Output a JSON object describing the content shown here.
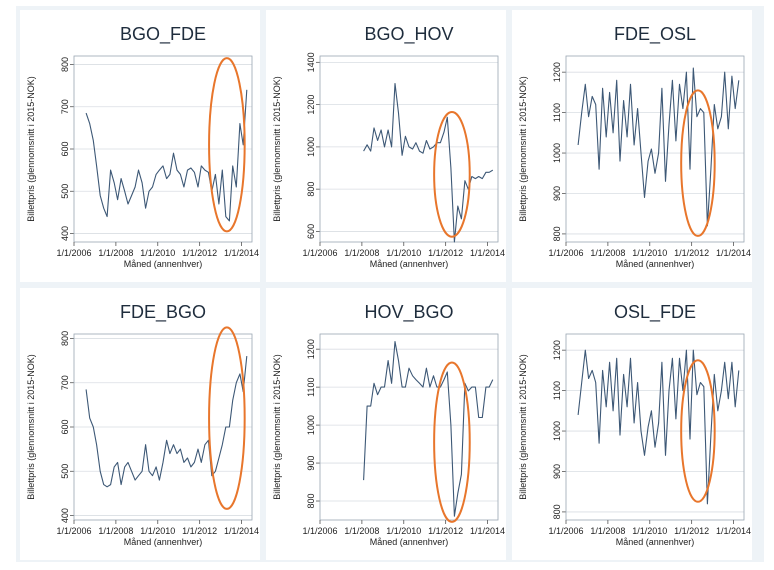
{
  "chart_data": [
    {
      "type": "line",
      "title": "BGO_FDE",
      "xlabel": "Måned (annenhver)",
      "ylabel": "Billettpris (glennomsnitt i 2015-NOK)",
      "xlim": [
        2006.0,
        2014.5
      ],
      "xtick_labels": [
        "1/1/2006",
        "1/1/2008",
        "1/1/2010",
        "1/1/2012",
        "1/1/2014"
      ],
      "ylim": [
        380,
        820
      ],
      "yticks": [
        400,
        500,
        600,
        700,
        800
      ],
      "x": [
        2006.58,
        2006.75,
        2006.92,
        2007.08,
        2007.25,
        2007.42,
        2007.58,
        2007.75,
        2007.92,
        2008.08,
        2008.25,
        2008.42,
        2008.58,
        2008.75,
        2008.92,
        2009.08,
        2009.25,
        2009.42,
        2009.58,
        2009.75,
        2009.92,
        2010.08,
        2010.25,
        2010.42,
        2010.58,
        2010.75,
        2010.92,
        2011.08,
        2011.25,
        2011.42,
        2011.58,
        2011.75,
        2011.92,
        2012.08,
        2012.25,
        2012.42,
        2012.58,
        2012.75,
        2012.92,
        2013.08,
        2013.25,
        2013.42,
        2013.58,
        2013.75,
        2013.92,
        2014.08,
        2014.25
      ],
      "series": [
        {
          "values": [
            685,
            660,
            620,
            560,
            490,
            460,
            440,
            550,
            520,
            480,
            530,
            500,
            470,
            490,
            510,
            550,
            520,
            460,
            500,
            510,
            540,
            550,
            560,
            530,
            540,
            590,
            550,
            540,
            510,
            550,
            555,
            545,
            510,
            560,
            550,
            545,
            500,
            540,
            470,
            550,
            440,
            430,
            560,
            510,
            660,
            610,
            740
          ]
        }
      ],
      "highlight_ellipse": {
        "center": [
          2013.3,
          610
        ],
        "rx": 0.85,
        "ry": 205
      }
    },
    {
      "type": "line",
      "title": "BGO_HOV",
      "xlabel": "Måned (annenhver)",
      "ylabel": "Billettpris (glennomsnitt i 2015-NOK)",
      "xlim": [
        2006.0,
        2014.5
      ],
      "xtick_labels": [
        "1/1/2006",
        "1/1/2008",
        "1/1/2010",
        "1/1/2012",
        "1/1/2014"
      ],
      "ylim": [
        550,
        1430
      ],
      "yticks": [
        600,
        800,
        1000,
        1200,
        1400
      ],
      "x": [
        2008.08,
        2008.25,
        2008.42,
        2008.58,
        2008.75,
        2008.92,
        2009.08,
        2009.25,
        2009.42,
        2009.58,
        2009.75,
        2009.92,
        2010.08,
        2010.25,
        2010.42,
        2010.58,
        2010.75,
        2010.92,
        2011.08,
        2011.25,
        2011.42,
        2011.58,
        2011.75,
        2011.92,
        2012.08,
        2012.25,
        2012.42,
        2012.58,
        2012.75,
        2012.92,
        2013.08,
        2013.25,
        2013.42,
        2013.58,
        2013.75,
        2013.92,
        2014.08,
        2014.25
      ],
      "series": [
        {
          "values": [
            980,
            1010,
            980,
            1090,
            1030,
            1080,
            1000,
            1080,
            1000,
            1300,
            1160,
            960,
            1050,
            1000,
            990,
            1020,
            980,
            970,
            1030,
            990,
            1000,
            1020,
            1020,
            1070,
            1140,
            900,
            550,
            720,
            660,
            840,
            800,
            860,
            850,
            860,
            850,
            880,
            880,
            890
          ]
        }
      ],
      "highlight_ellipse": {
        "center": [
          2012.3,
          870
        ],
        "rx": 0.85,
        "ry": 295
      }
    },
    {
      "type": "line",
      "title": "FDE_OSL",
      "xlabel": "Måned (annenhver)",
      "ylabel": "Billettpris (glennomsnitt i 2015-NOK)",
      "xlim": [
        2006.0,
        2014.5
      ],
      "xtick_labels": [
        "1/1/2006",
        "1/1/2008",
        "1/1/2010",
        "1/1/2012",
        "1/1/2014"
      ],
      "ylim": [
        780,
        1240
      ],
      "yticks": [
        800,
        900,
        1000,
        1100,
        1200
      ],
      "x": [
        2006.58,
        2006.75,
        2006.92,
        2007.08,
        2007.25,
        2007.42,
        2007.58,
        2007.75,
        2007.92,
        2008.08,
        2008.25,
        2008.42,
        2008.58,
        2008.75,
        2008.92,
        2009.08,
        2009.25,
        2009.42,
        2009.58,
        2009.75,
        2009.92,
        2010.08,
        2010.25,
        2010.42,
        2010.58,
        2010.75,
        2010.92,
        2011.08,
        2011.25,
        2011.42,
        2011.58,
        2011.75,
        2011.92,
        2012.08,
        2012.25,
        2012.42,
        2012.58,
        2012.75,
        2012.92,
        2013.08,
        2013.25,
        2013.42,
        2013.58,
        2013.75,
        2013.92,
        2014.08,
        2014.25
      ],
      "series": [
        {
          "values": [
            1020,
            1100,
            1170,
            1090,
            1140,
            1120,
            960,
            1160,
            1040,
            1150,
            1050,
            1180,
            980,
            1130,
            1040,
            1170,
            1020,
            1110,
            1000,
            890,
            980,
            1010,
            950,
            1000,
            1160,
            930,
            1070,
            1180,
            1030,
            1170,
            1110,
            1200,
            960,
            1210,
            1090,
            1110,
            1100,
            820,
            960,
            1120,
            1060,
            1090,
            1200,
            1060,
            1190,
            1110,
            1180
          ]
        }
      ],
      "highlight_ellipse": {
        "center": [
          2012.3,
          975
        ],
        "rx": 0.8,
        "ry": 180
      }
    },
    {
      "type": "line",
      "title": "FDE_BGO",
      "xlabel": "Måned (annenhver)",
      "ylabel": "Billettpris (glennomsnitt i 2015-NOK)",
      "xlim": [
        2006.0,
        2014.5
      ],
      "xtick_labels": [
        "1/1/2006",
        "1/1/2008",
        "1/1/2010",
        "1/1/2012",
        "1/1/2014"
      ],
      "ylim": [
        390,
        810
      ],
      "yticks": [
        400,
        500,
        600,
        700,
        800
      ],
      "x": [
        2006.58,
        2006.75,
        2006.92,
        2007.08,
        2007.25,
        2007.42,
        2007.58,
        2007.75,
        2007.92,
        2008.08,
        2008.25,
        2008.42,
        2008.58,
        2008.75,
        2008.92,
        2009.08,
        2009.25,
        2009.42,
        2009.58,
        2009.75,
        2009.92,
        2010.08,
        2010.25,
        2010.42,
        2010.58,
        2010.75,
        2010.92,
        2011.08,
        2011.25,
        2011.42,
        2011.58,
        2011.75,
        2011.92,
        2012.08,
        2012.25,
        2012.42,
        2012.58,
        2012.75,
        2012.92,
        2013.08,
        2013.25,
        2013.42,
        2013.58,
        2013.75,
        2013.92,
        2014.08,
        2014.25
      ],
      "series": [
        {
          "values": [
            685,
            620,
            600,
            560,
            500,
            470,
            465,
            470,
            510,
            520,
            470,
            510,
            520,
            500,
            480,
            490,
            500,
            560,
            500,
            490,
            510,
            480,
            520,
            570,
            540,
            560,
            540,
            550,
            520,
            530,
            510,
            520,
            550,
            520,
            560,
            570,
            490,
            500,
            530,
            560,
            600,
            600,
            660,
            700,
            720,
            680,
            760
          ]
        }
      ],
      "highlight_ellipse": {
        "center": [
          2013.3,
          620
        ],
        "rx": 0.85,
        "ry": 205
      }
    },
    {
      "type": "line",
      "title": "HOV_BGO",
      "xlabel": "Måned (annenhver)",
      "ylabel": "Billettpris (glennomsnitt i 2015-NOK)",
      "xlim": [
        2006.0,
        2014.5
      ],
      "xtick_labels": [
        "1/1/2006",
        "1/1/2008",
        "1/1/2010",
        "1/1/2012",
        "1/1/2014"
      ],
      "ylim": [
        750,
        1240
      ],
      "yticks": [
        800,
        900,
        1000,
        1100,
        1200
      ],
      "x": [
        2008.08,
        2008.25,
        2008.42,
        2008.58,
        2008.75,
        2008.92,
        2009.08,
        2009.25,
        2009.42,
        2009.58,
        2009.75,
        2009.92,
        2010.08,
        2010.25,
        2010.42,
        2010.58,
        2010.75,
        2010.92,
        2011.08,
        2011.25,
        2011.42,
        2011.58,
        2011.75,
        2011.92,
        2012.08,
        2012.25,
        2012.42,
        2012.58,
        2012.75,
        2012.92,
        2013.08,
        2013.25,
        2013.42,
        2013.58,
        2013.75,
        2013.92,
        2014.08,
        2014.25
      ],
      "series": [
        {
          "values": [
            855,
            1050,
            1050,
            1110,
            1080,
            1100,
            1100,
            1170,
            1110,
            1220,
            1170,
            1100,
            1100,
            1150,
            1130,
            1120,
            1110,
            1100,
            1150,
            1100,
            1130,
            1100,
            1100,
            1120,
            1140,
            1000,
            760,
            820,
            870,
            1110,
            1090,
            1100,
            1100,
            1020,
            1020,
            1100,
            1100,
            1120
          ]
        }
      ],
      "highlight_ellipse": {
        "center": [
          2012.3,
          955
        ],
        "rx": 0.85,
        "ry": 210
      }
    },
    {
      "type": "line",
      "title": "OSL_FDE",
      "xlabel": "Måned (annenhver)",
      "ylabel": "Billettpris (glennomsnitt i 2015-NOK)",
      "xlim": [
        2006.0,
        2014.5
      ],
      "xtick_labels": [
        "1/1/2006",
        "1/1/2008",
        "1/1/2010",
        "1/1/2012",
        "1/1/2014"
      ],
      "ylim": [
        780,
        1240
      ],
      "yticks": [
        800,
        900,
        1000,
        1100,
        1200
      ],
      "x": [
        2006.58,
        2006.75,
        2006.92,
        2007.08,
        2007.25,
        2007.42,
        2007.58,
        2007.75,
        2007.92,
        2008.08,
        2008.25,
        2008.42,
        2008.58,
        2008.75,
        2008.92,
        2009.08,
        2009.25,
        2009.42,
        2009.58,
        2009.75,
        2009.92,
        2010.08,
        2010.25,
        2010.42,
        2010.58,
        2010.75,
        2010.92,
        2011.08,
        2011.25,
        2011.42,
        2011.58,
        2011.75,
        2011.92,
        2012.08,
        2012.25,
        2012.42,
        2012.58,
        2012.75,
        2012.92,
        2013.08,
        2013.25,
        2013.42,
        2013.58,
        2013.75,
        2013.92,
        2014.08,
        2014.25
      ],
      "series": [
        {
          "values": [
            1040,
            1120,
            1200,
            1130,
            1150,
            1120,
            970,
            1150,
            1060,
            1170,
            1050,
            1180,
            990,
            1140,
            1060,
            1180,
            1020,
            1120,
            1000,
            940,
            1010,
            1050,
            960,
            1020,
            1170,
            940,
            1100,
            1180,
            1030,
            1180,
            1100,
            1200,
            980,
            1200,
            1090,
            1120,
            1110,
            820,
            990,
            1140,
            1050,
            1100,
            1170,
            1080,
            1170,
            1060,
            1150
          ]
        }
      ],
      "highlight_ellipse": {
        "center": [
          2012.3,
          1000
        ],
        "rx": 0.8,
        "ry": 175
      }
    }
  ],
  "colors": {
    "line": "#3d5876",
    "highlight": "#e8762c",
    "panel_bg": "#ffffff",
    "outer_bg": "#eef3f7",
    "plot_border": "#9aa6b2",
    "grid": "#d9dee3",
    "title": "#1f2d3d"
  }
}
